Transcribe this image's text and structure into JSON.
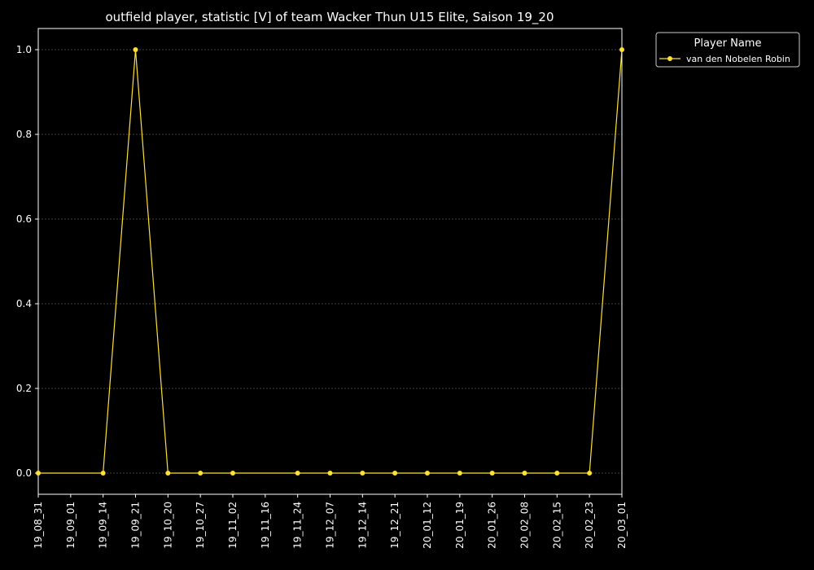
{
  "chart_data": {
    "type": "line",
    "title": "outfield player, statistic [V] of team Wacker Thun U15 Elite, Saison 19_20",
    "xlabel": "",
    "ylabel": "",
    "categories": [
      "19_08_31",
      "19_09_01",
      "19_09_14",
      "19_09_21",
      "19_10_20",
      "19_10_27",
      "19_11_02",
      "19_11_16",
      "19_11_24",
      "19_12_07",
      "19_12_14",
      "19_12_21",
      "20_01_12",
      "20_01_19",
      "20_01_26",
      "20_02_08",
      "20_02_15",
      "20_02_23",
      "20_03_01"
    ],
    "ylim": [
      -0.05,
      1.05
    ],
    "yticks": [
      "0.0",
      "0.2",
      "0.4",
      "0.6",
      "0.8",
      "1.0"
    ],
    "grid": true,
    "legend": {
      "title": "Player Name",
      "placement": "outside-top-right"
    },
    "series": [
      {
        "name": "van den Nobelen Robin",
        "color": "#ffe135",
        "values": [
          0,
          null,
          0,
          1,
          0,
          0,
          0,
          null,
          0,
          0,
          0,
          0,
          0,
          0,
          0,
          0,
          0,
          0,
          1
        ]
      }
    ]
  },
  "colors": {
    "background": "#000000",
    "axes": "#ffffff",
    "grid": "#7f7f7f"
  }
}
